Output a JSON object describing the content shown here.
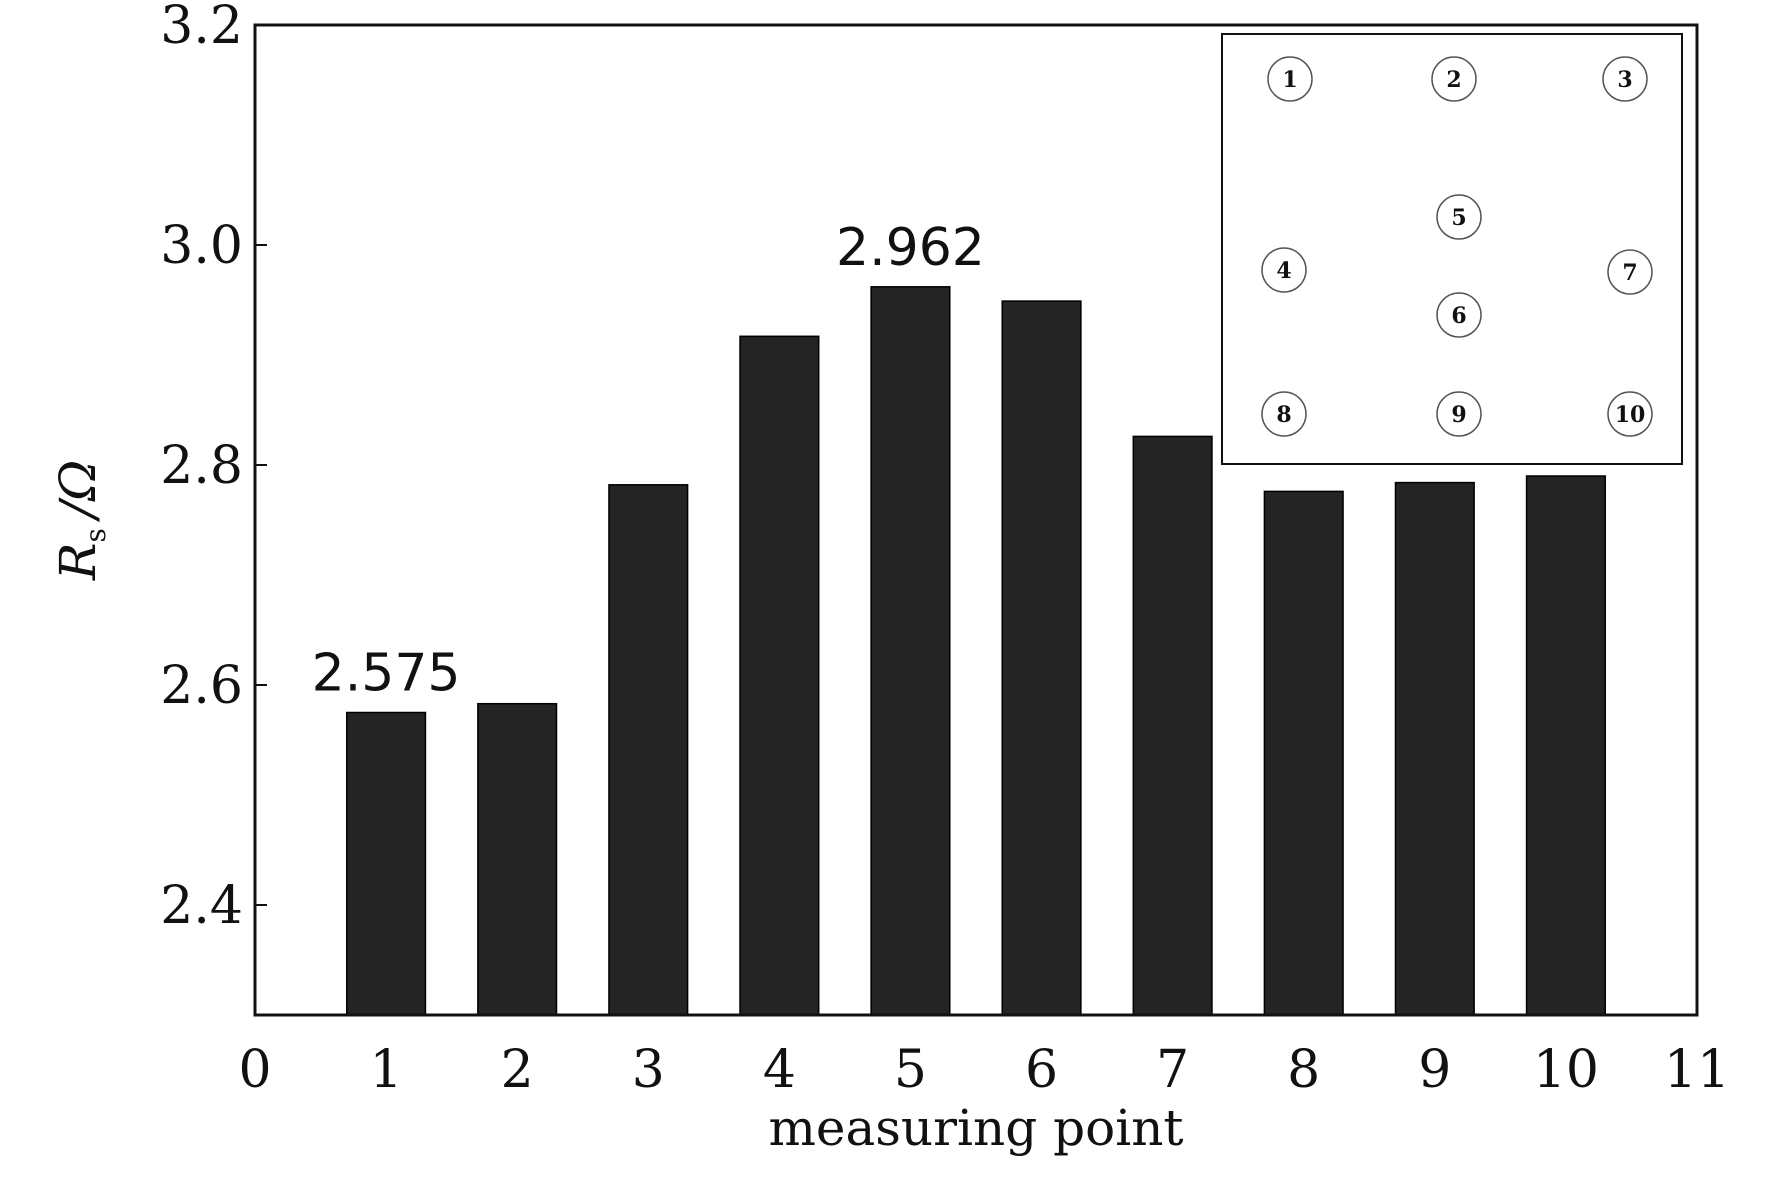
{
  "chart_data": {
    "type": "bar",
    "x": [
      1,
      2,
      3,
      4,
      5,
      6,
      7,
      8,
      9,
      10
    ],
    "values": [
      2.575,
      2.583,
      2.782,
      2.917,
      2.962,
      2.949,
      2.826,
      2.776,
      2.784,
      2.79
    ],
    "xlabel": "measuring point",
    "ylabel": "R",
    "ylabel_sub": "s",
    "ylabel_unit": "/Ω",
    "xlim": [
      0,
      11
    ],
    "ylim": [
      2.3,
      3.2
    ],
    "xticks": [
      "0",
      "1",
      "2",
      "3",
      "4",
      "5",
      "6",
      "7",
      "8",
      "9",
      "10",
      "11"
    ],
    "yticks": [
      "2.4",
      "2.6",
      "2.8",
      "3.0",
      "3.2"
    ],
    "annotations": [
      {
        "x": 1,
        "text": "2.575"
      },
      {
        "x": 5,
        "text": "2.962"
      }
    ],
    "bar_color": "#242424",
    "inset": {
      "points": [
        "1",
        "2",
        "3",
        "4",
        "5",
        "6",
        "7",
        "8",
        "9",
        "10"
      ]
    },
    "grid": false
  }
}
